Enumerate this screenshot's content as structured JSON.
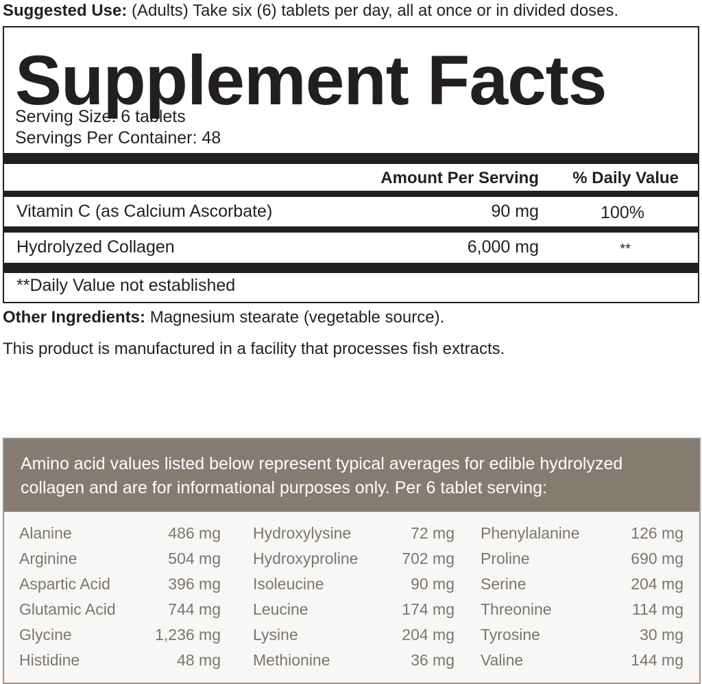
{
  "suggested_use": {
    "label": "Suggested Use:",
    "text": "(Adults) Take six (6) tablets per day, all at once or in divided doses."
  },
  "facts": {
    "title": "Supplement Facts",
    "serving_size": "Serving Size: 6 tablets",
    "servings_per_container": "Servings Per Container: 48",
    "headers": [
      "Amount Per Serving",
      "% Daily Value"
    ],
    "rows": [
      [
        "Vitamin C (as Calcium Ascorbate)",
        "90 mg",
        "100%"
      ],
      [
        "Hydrolyzed Collagen",
        "6,000 mg",
        "**"
      ]
    ],
    "footnote": "**Daily Value not established"
  },
  "other_ingredients": {
    "label": "Other Ingredients:",
    "text": "Magnesium stearate (vegetable source)."
  },
  "facility_note": "This product is manufactured in a facility that processes fish extracts.",
  "amino": {
    "intro": [
      "Amino acid values listed below represent typical averages for edible hydrolyzed",
      "collagen and are for informational purposes only. Per 6 tablet serving:"
    ],
    "columns": [
      [
        [
          "Alanine",
          "486 mg"
        ],
        [
          "Arginine",
          "504 mg"
        ],
        [
          "Aspartic Acid",
          "396 mg"
        ],
        [
          "Glutamic Acid",
          "744 mg"
        ],
        [
          "Glycine",
          "1,236 mg"
        ],
        [
          "Histidine",
          "48 mg"
        ]
      ],
      [
        [
          "Hydroxylysine",
          "72 mg"
        ],
        [
          "Hydroxyproline",
          "702 mg"
        ],
        [
          "Isoleucine",
          "90 mg"
        ],
        [
          "Leucine",
          "174 mg"
        ],
        [
          "Lysine",
          "204 mg"
        ],
        [
          "Methionine",
          "36 mg"
        ]
      ],
      [
        [
          "Phenylalanine",
          "126 mg"
        ],
        [
          "Proline",
          "690 mg"
        ],
        [
          "Serine",
          "204 mg"
        ],
        [
          "Threonine",
          "114 mg"
        ],
        [
          "Tyrosine",
          "30 mg"
        ],
        [
          "Valine",
          "144 mg"
        ]
      ]
    ]
  }
}
